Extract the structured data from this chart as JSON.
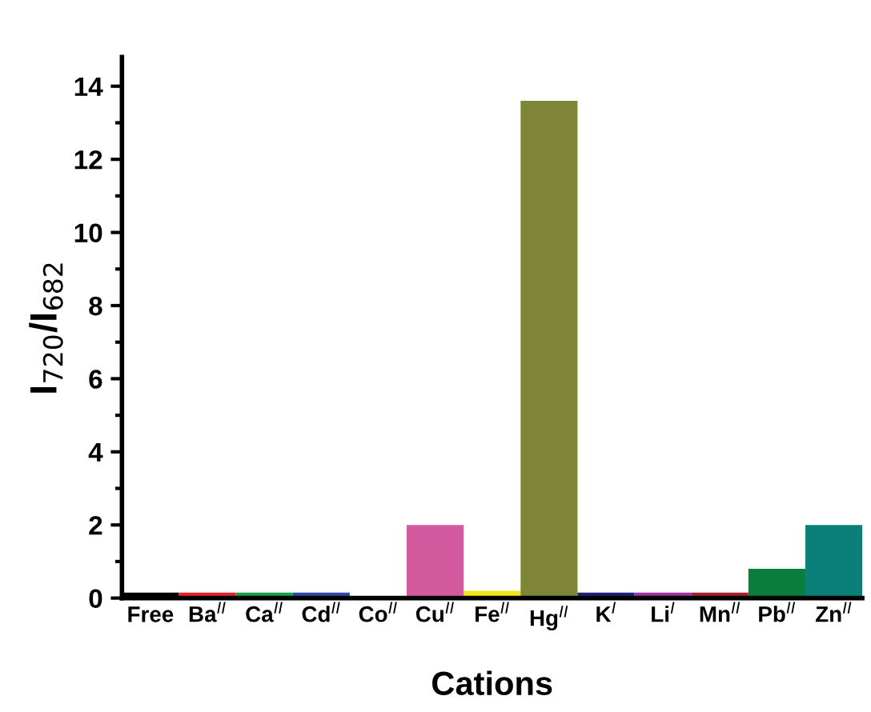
{
  "chart_data": {
    "type": "bar",
    "xlabel": "Cations",
    "ylabel": "I$_{720}$/I$_{682}$",
    "categories": [
      "Free",
      "Ba$^{II}$",
      "Ca$^{II}$",
      "Cd$^{II}$",
      "Co$^{II}$",
      "Cu$^{II}$",
      "Fe$^{II}$",
      "Hg$^{II}$",
      "K$^{I}$",
      "Li$^{I}$",
      "Mn$^{II}$",
      "Pb$^{II}$",
      "Zn$^{II}$"
    ],
    "values": [
      0.15,
      0.15,
      0.15,
      0.15,
      0.0,
      2.0,
      0.2,
      13.6,
      0.15,
      0.15,
      0.15,
      0.8,
      2.0
    ],
    "colors": [
      "#000000",
      "#e8202a",
      "#1aa04a",
      "#2b4aa0",
      "#2a2a2a",
      "#d45aa0",
      "#f0e81a",
      "#7f8537",
      "#1f1f78",
      "#9a35a0",
      "#a01f2a",
      "#0a7d3c",
      "#0a8078"
    ],
    "ylim": [
      0,
      14.8
    ],
    "yticks": [
      0,
      2,
      4,
      6,
      8,
      10,
      12,
      14
    ],
    "grid": false
  }
}
